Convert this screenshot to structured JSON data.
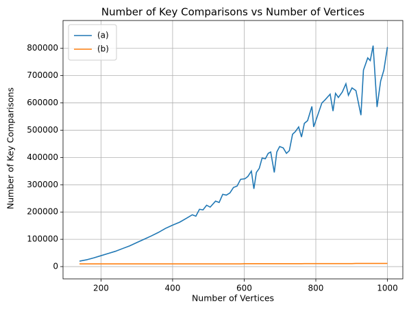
{
  "chart_data": {
    "type": "line",
    "title": "Number of Key Comparisons vs Number of Vertices",
    "x_label": "Number of Vertices",
    "y_label": "Number of Key Comparisons",
    "x": [
      140,
      160,
      180,
      200,
      220,
      240,
      260,
      280,
      300,
      320,
      340,
      360,
      380,
      400,
      420,
      440,
      455,
      465,
      475,
      485,
      495,
      505,
      520,
      530,
      540,
      550,
      560,
      570,
      580,
      590,
      602,
      610,
      620,
      627,
      634,
      642,
      650,
      659,
      667,
      674,
      684,
      691,
      699,
      709,
      718,
      726,
      735,
      743,
      752,
      760,
      768,
      777,
      789,
      794,
      800,
      817,
      825,
      840,
      848,
      855,
      863,
      874,
      884,
      891,
      901,
      912,
      926,
      933,
      945,
      952,
      960,
      971,
      981,
      990,
      1000
    ],
    "series": [
      {
        "name": "(a)",
        "color": "#1f77b4",
        "values": [
          20000,
          25000,
          32000,
          40000,
          48000,
          56000,
          66000,
          76000,
          88000,
          100000,
          112000,
          125000,
          140000,
          152000,
          163000,
          178000,
          190000,
          185000,
          210000,
          208000,
          225000,
          218000,
          240000,
          235000,
          265000,
          262000,
          270000,
          290000,
          295000,
          320000,
          322000,
          330000,
          350000,
          285000,
          345000,
          360000,
          398000,
          395000,
          415000,
          420000,
          345000,
          420000,
          440000,
          435000,
          415000,
          425000,
          485000,
          495000,
          512000,
          475000,
          525000,
          535000,
          587000,
          512000,
          535000,
          600000,
          610000,
          632000,
          570000,
          635000,
          620000,
          640000,
          670000,
          628000,
          655000,
          645000,
          555000,
          720000,
          765000,
          755000,
          810000,
          585000,
          680000,
          720000,
          805000
        ]
      },
      {
        "name": "(b)",
        "color": "#ff7f0e",
        "values": [
          10000,
          10000,
          10000,
          10000,
          10000,
          10000,
          10000,
          10000,
          10000,
          10000,
          10000,
          10000,
          10000,
          10000,
          10000,
          10000,
          10000,
          10000,
          10000,
          10000,
          10000,
          10000,
          10000,
          10000,
          10000,
          10000,
          10000,
          10000,
          10000,
          10000,
          10500,
          10500,
          10500,
          10500,
          10500,
          10500,
          10500,
          10500,
          10500,
          10500,
          10500,
          10500,
          10500,
          10500,
          10500,
          10500,
          10500,
          10500,
          10500,
          10500,
          11000,
          11000,
          11000,
          11000,
          11000,
          11000,
          11000,
          11000,
          11000,
          11000,
          11000,
          11000,
          11000,
          11000,
          11000,
          11500,
          11500,
          11500,
          11500,
          11500,
          11500,
          11500,
          11500,
          11500,
          11500
        ]
      }
    ],
    "xlim": [
      94,
      1043
    ],
    "ylim": [
      -45000,
      902000
    ],
    "xticks": [
      200,
      400,
      600,
      800,
      1000
    ],
    "yticks": [
      0,
      100000,
      200000,
      300000,
      400000,
      500000,
      600000,
      700000,
      800000
    ],
    "grid": true,
    "legend": "upper left"
  }
}
